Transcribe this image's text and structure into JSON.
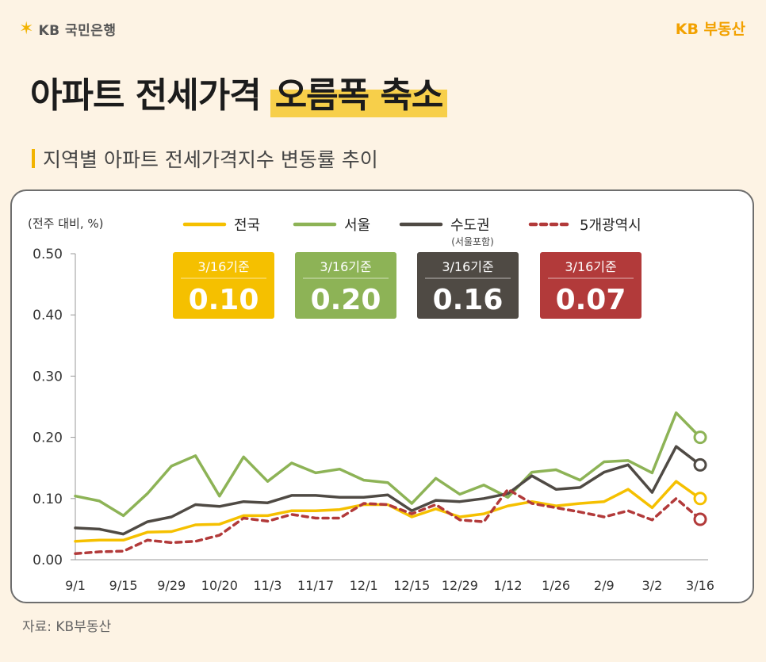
{
  "brand": {
    "left_text": "KB 국민은행",
    "right_text": "KB 부동산"
  },
  "header": {
    "title_main": "아파트 전세가격",
    "title_highlight": "오름폭 축소"
  },
  "subtitle": "지역별 아파트 전세가격지수 변동률 추이",
  "source": "자료: KB부동산",
  "chart_data": {
    "type": "line",
    "unit_label": "(전주 대비, %)",
    "x": [
      "9/1",
      "9/8",
      "9/15",
      "9/22",
      "9/29",
      "10/6",
      "10/20",
      "10/27",
      "11/3",
      "11/10",
      "11/17",
      "11/24",
      "12/1",
      "12/8",
      "12/15",
      "12/22",
      "12/29",
      "1/5",
      "1/12",
      "1/19",
      "1/26",
      "2/2",
      "2/9",
      "2/16",
      "3/2",
      "3/9",
      "3/16"
    ],
    "x_tick_labels": [
      "9/1",
      "9/15",
      "9/29",
      "10/20",
      "11/3",
      "11/17",
      "12/1",
      "12/15",
      "12/29",
      "1/12",
      "1/26",
      "2/9",
      "3/2",
      "3/16"
    ],
    "y_ticks": [
      "0.50",
      "0.40",
      "0.30",
      "0.20",
      "0.10",
      "0.00"
    ],
    "ylim": [
      0,
      0.5
    ],
    "series": [
      {
        "name": "전국",
        "color": "#f5c000",
        "dashed": false,
        "values": [
          0.03,
          0.032,
          0.032,
          0.045,
          0.046,
          0.057,
          0.058,
          0.072,
          0.072,
          0.08,
          0.08,
          0.082,
          0.09,
          0.09,
          0.07,
          0.083,
          0.07,
          0.075,
          0.088,
          0.095,
          0.088,
          0.092,
          0.095,
          0.115,
          0.085,
          0.128,
          0.1
        ]
      },
      {
        "name": "서울",
        "color": "#8db356",
        "dashed": false,
        "values": [
          0.104,
          0.096,
          0.072,
          0.108,
          0.153,
          0.17,
          0.104,
          0.168,
          0.128,
          0.158,
          0.142,
          0.148,
          0.13,
          0.126,
          0.092,
          0.133,
          0.107,
          0.122,
          0.102,
          0.143,
          0.147,
          0.13,
          0.16,
          0.162,
          0.142,
          0.24,
          0.2
        ]
      },
      {
        "name": "수도권",
        "sub": "(서울포함)",
        "color": "#4f4a44",
        "dashed": false,
        "values": [
          0.052,
          0.05,
          0.042,
          0.062,
          0.07,
          0.09,
          0.087,
          0.095,
          0.093,
          0.105,
          0.105,
          0.102,
          0.102,
          0.106,
          0.08,
          0.097,
          0.095,
          0.1,
          0.108,
          0.137,
          0.115,
          0.118,
          0.143,
          0.155,
          0.11,
          0.185,
          0.155
        ]
      },
      {
        "name": "5개광역시",
        "color": "#b23a3a",
        "dashed": true,
        "values": [
          0.01,
          0.013,
          0.014,
          0.032,
          0.028,
          0.03,
          0.04,
          0.068,
          0.063,
          0.074,
          0.068,
          0.068,
          0.092,
          0.09,
          0.075,
          0.09,
          0.065,
          0.062,
          0.115,
          0.092,
          0.085,
          0.078,
          0.07,
          0.08,
          0.065,
          0.1,
          0.066
        ]
      }
    ],
    "callouts": [
      {
        "label": "3/16기준",
        "value": "0.10",
        "color": "#f5c000"
      },
      {
        "label": "3/16기준",
        "value": "0.20",
        "color": "#8db356"
      },
      {
        "label": "3/16기준",
        "value": "0.16",
        "color": "#4f4a44"
      },
      {
        "label": "3/16기준",
        "value": "0.07",
        "color": "#b23a3a"
      }
    ],
    "legend_position": "top",
    "grid": false
  }
}
